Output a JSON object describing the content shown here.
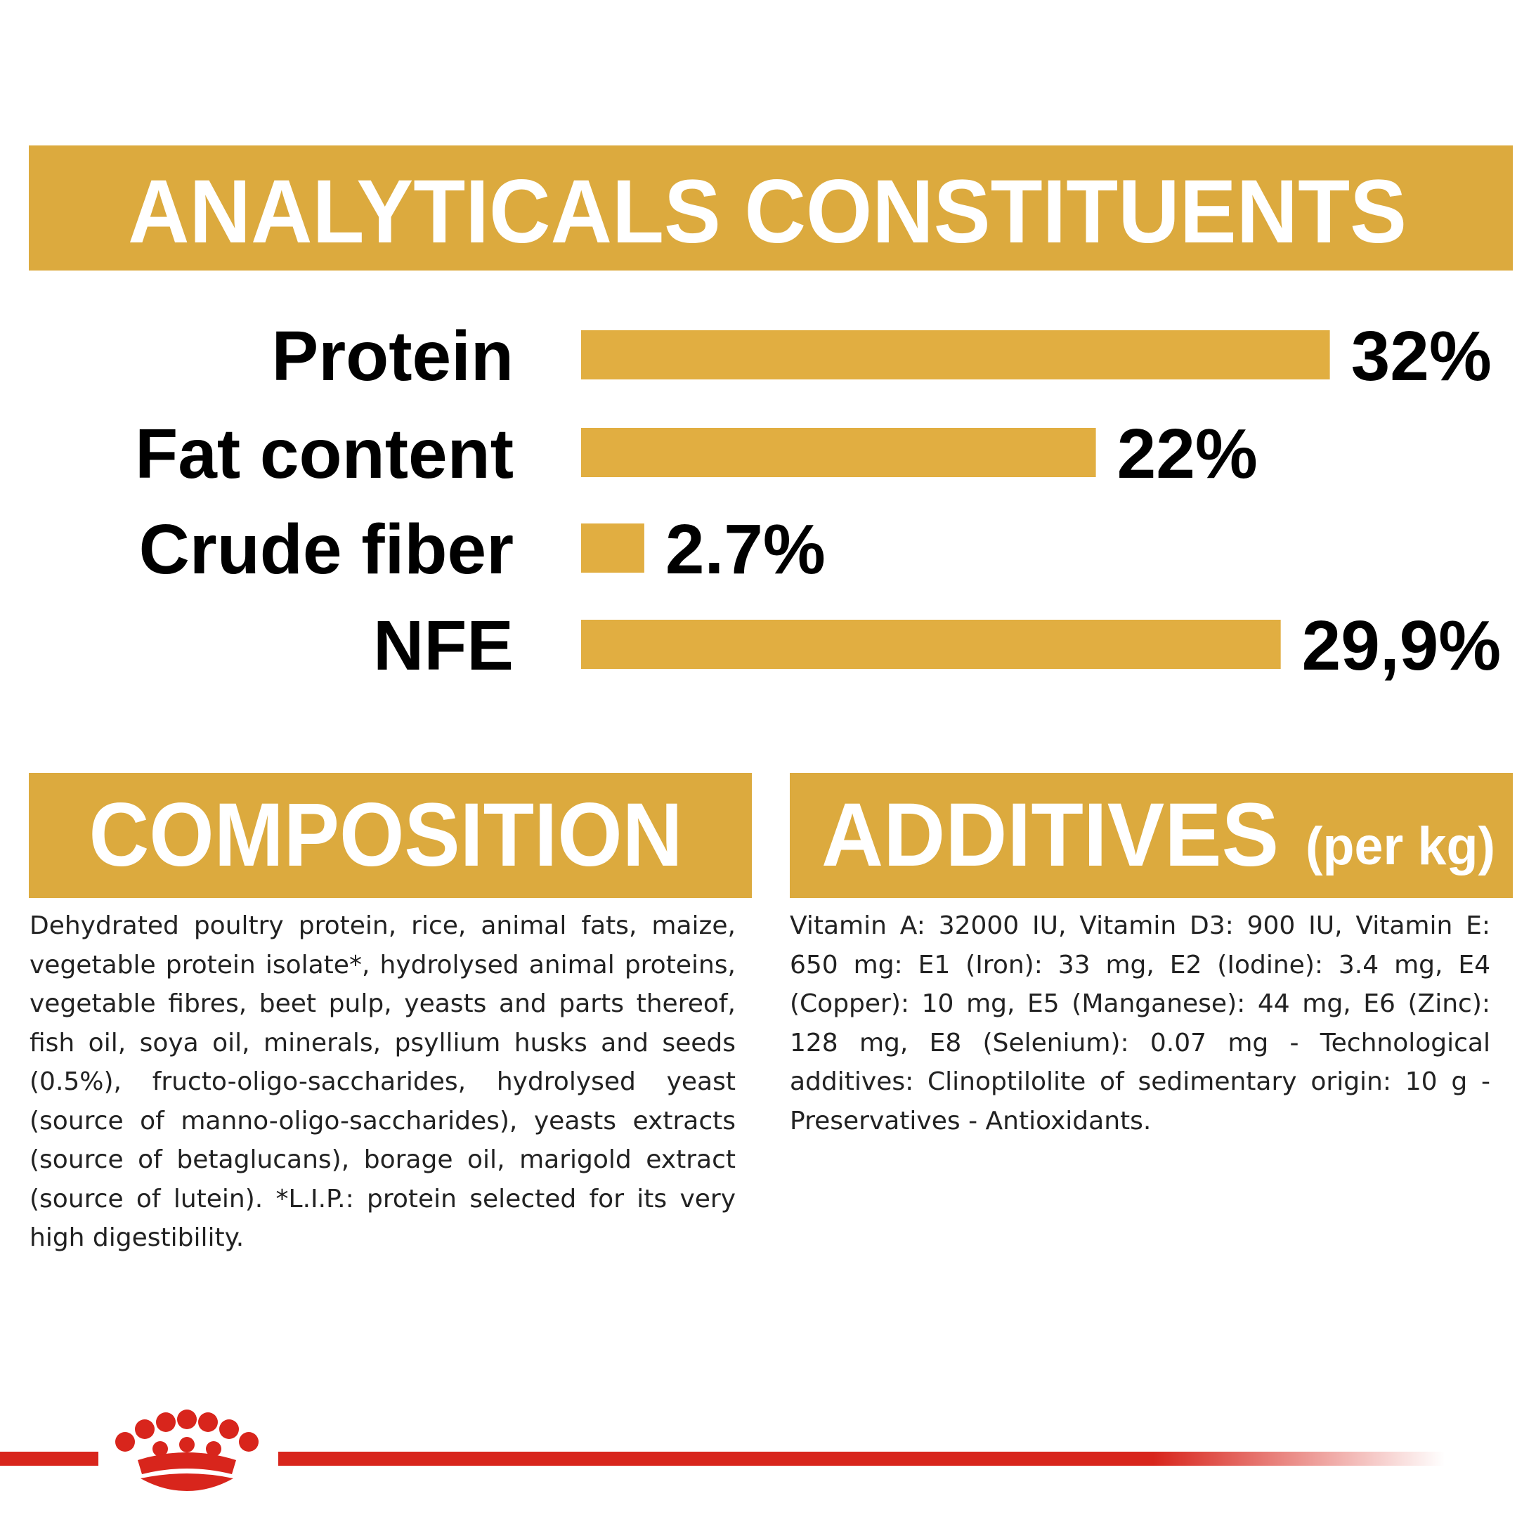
{
  "chart_data": {
    "type": "bar",
    "title": "ANALYTICALS CONSTITUENTS",
    "categories": [
      "Protein",
      "Fat content",
      "Crude fiber",
      "NFE"
    ],
    "values": [
      32,
      22,
      2.7,
      29.9
    ],
    "value_labels": [
      "32%",
      "22%",
      "2.7%",
      "29,9%"
    ],
    "color": "#e1ae41"
  },
  "composition": {
    "title": "COMPOSITION",
    "text": "Dehydrated poultry protein, rice, animal fats, maize, vegetable protein isolate*, hydrolysed animal proteins, vegetable fibres, beet pulp, yeasts and parts thereof, fish oil, soya oil, minerals, psyllium husks and seeds (0.5%), fructo-oligo-saccharides, hydrolysed yeast (source of manno-oligo-saccharides), yeasts extracts (source of betaglucans), borage oil, marigold extract (source of lutein). *L.I.P.: protein selected for its very high digestibility."
  },
  "additives": {
    "title": "ADDITIVES",
    "subtitle": "(per kg)",
    "text": "Vitamin A: 32000 IU, Vitamin D3: 900 IU, Vitamin E: 650 mg: E1 (Iron): 33 mg, E2 (Iodine): 3.4 mg, E4 (Copper): 10 mg, E5 (Manganese): 44 mg, E6 (Zinc): 128 mg, E8 (Selenium): 0.07 mg - Technological additives: Clinoptilolite of sedimentary origin: 10 g - Preservatives - Antioxidants."
  }
}
